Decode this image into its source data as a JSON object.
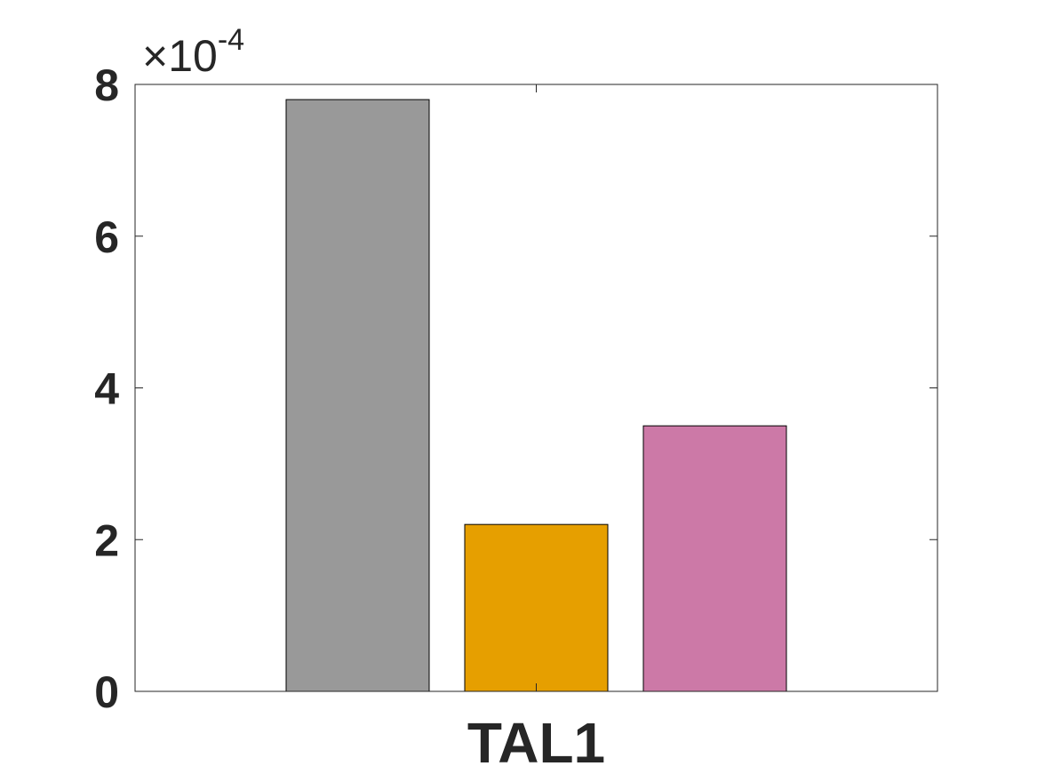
{
  "chart_data": {
    "type": "bar",
    "title": "",
    "xlabel": "",
    "ylabel": "",
    "categories": [
      "TAL1"
    ],
    "y_exponent_label": {
      "times": "×10",
      "power": "-4"
    },
    "y_multiplier": 0.0001,
    "ylim": [
      0,
      8
    ],
    "yticks": [
      0,
      2,
      4,
      6,
      8
    ],
    "yticklabels": [
      "0",
      "2",
      "4",
      "6",
      "8"
    ],
    "grid": false,
    "legend": "none",
    "series": [
      {
        "values": [
          7.8
        ],
        "color": "#999999"
      },
      {
        "values": [
          2.2
        ],
        "color": "#E69F00"
      },
      {
        "values": [
          3.5
        ],
        "color": "#CC79A7"
      }
    ]
  }
}
